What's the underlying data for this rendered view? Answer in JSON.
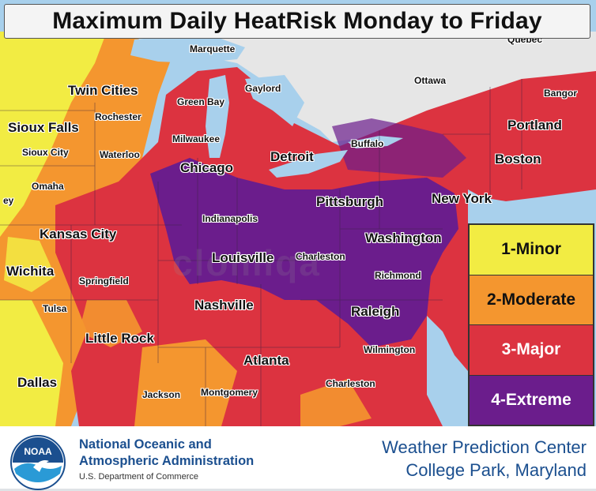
{
  "title": "Maximum Daily HeatRisk Monday to Friday",
  "legend": [
    {
      "label": "1-Minor",
      "color": "#f2ec43"
    },
    {
      "label": "2-Moderate",
      "color": "#f4962f"
    },
    {
      "label": "3-Major",
      "color": "#dc3340"
    },
    {
      "label": "4-Extreme",
      "color": "#6b1d8c"
    }
  ],
  "watermark": "clomiqa",
  "cities": {
    "marquette": "Marquette",
    "quebec": "Québec",
    "ottawa": "Ottawa",
    "bangor": "Bangor",
    "portland": "Portland",
    "boston": "Boston",
    "twin_cities": "Twin Cities",
    "green_bay": "Green Bay",
    "gaylord": "Gaylord",
    "rochester": "Rochester",
    "sioux_falls": "Sioux Falls",
    "sioux_city": "Sioux City",
    "waterloo": "Waterloo",
    "milwaukee": "Milwaukee",
    "detroit": "Detroit",
    "buffalo": "Buffalo",
    "chicago": "Chicago",
    "omaha": "Omaha",
    "pittsburgh": "Pittsburgh",
    "new_york": "New York",
    "indianapolis": "Indianapolis",
    "kansas_city": "Kansas City",
    "washington": "Washington",
    "louisville": "Louisville",
    "charleston_wv": "Charleston",
    "wichita": "Wichita",
    "springfield": "Springfield",
    "richmond": "Richmond",
    "nashville": "Nashville",
    "tulsa": "Tulsa",
    "raleigh": "Raleigh",
    "little_rock": "Little Rock",
    "wilmington": "Wilmington",
    "atlanta": "Atlanta",
    "dallas": "Dallas",
    "charleston_sc": "Charleston",
    "jackson": "Jackson",
    "montgomery": "Montgomery",
    "ey": "ey"
  },
  "footer": {
    "logo_text": "NOAA",
    "agency_line1": "National Oceanic and",
    "agency_line2": "Atmospheric Administration",
    "department": "U.S. Department of Commerce",
    "center_line1": "Weather Prediction Center",
    "center_line2": "College Park, Maryland"
  },
  "colors": {
    "water": "#a8d0ec",
    "canada_land": "#e6e6e6",
    "noaa_blue": "#1b4f8f"
  }
}
